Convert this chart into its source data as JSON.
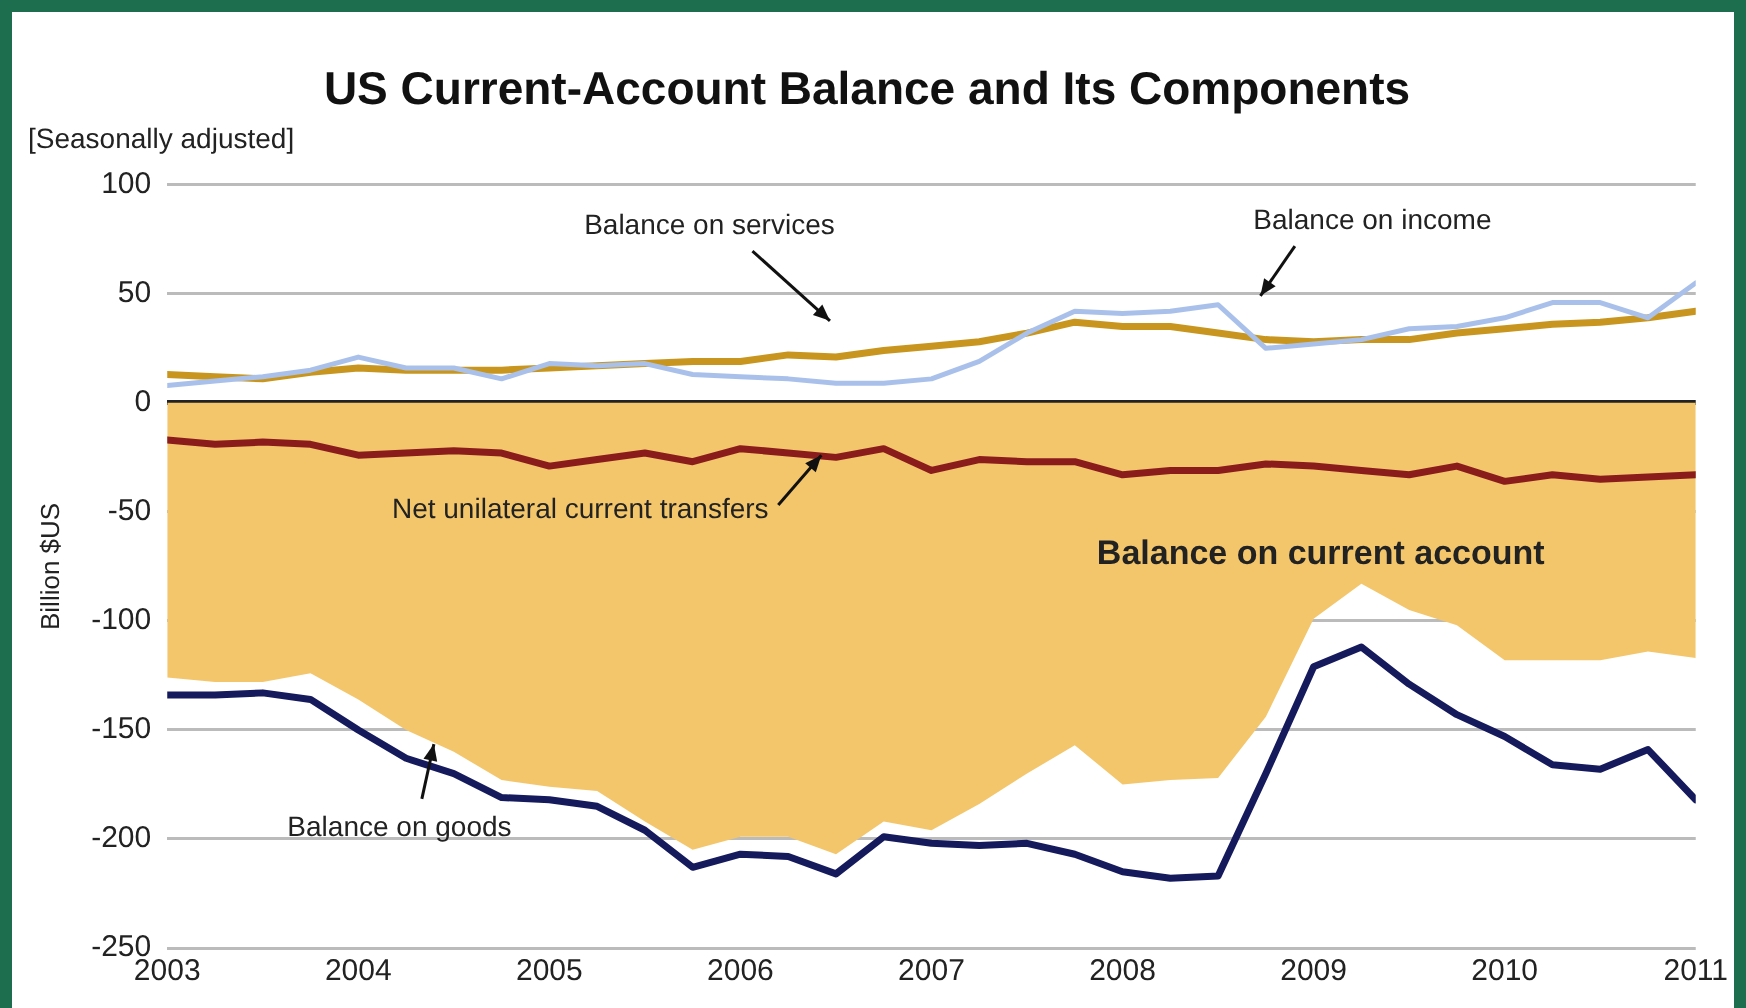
{
  "chart_data": {
    "type": "line",
    "title": "US Current-Account Balance and Its Components",
    "subtitle": "[Seasonally adjusted]",
    "ylabel": "Billion $US",
    "x": [
      2003,
      2003.25,
      2003.5,
      2003.75,
      2004,
      2004.25,
      2004.5,
      2004.75,
      2005,
      2005.25,
      2005.5,
      2005.75,
      2006,
      2006.25,
      2006.5,
      2006.75,
      2007,
      2007.25,
      2007.5,
      2007.75,
      2008,
      2008.25,
      2008.5,
      2008.75,
      2009,
      2009.25,
      2009.5,
      2009.75,
      2010,
      2010.25,
      2010.5,
      2010.75,
      2011
    ],
    "xlim": [
      2003,
      2011
    ],
    "xticks": [
      2003,
      2004,
      2005,
      2006,
      2007,
      2008,
      2009,
      2010,
      2011
    ],
    "ylim": [
      -250,
      100
    ],
    "yticks": [
      -250,
      -200,
      -150,
      -100,
      -50,
      0,
      50,
      100
    ],
    "grid": "y",
    "legend": false,
    "marker": "none",
    "line_style": "solid",
    "series": [
      {
        "name": "Balance on current account",
        "type": "area",
        "color": "#f3c66b",
        "values": [
          -126,
          -128,
          -128,
          -124,
          -136,
          -150,
          -160,
          -173,
          -176,
          -178,
          -192,
          -205,
          -199,
          -199,
          -207,
          -192,
          -196,
          -184,
          -170,
          -157,
          -175,
          -173,
          -172,
          -144,
          -99,
          -83,
          -95,
          -102,
          -118,
          -118,
          -118,
          -114,
          -117
        ]
      },
      {
        "name": "Balance on services",
        "color": "#c8961e",
        "values": [
          13,
          12,
          11,
          14,
          16,
          15,
          15,
          15,
          16,
          17,
          18,
          19,
          19,
          22,
          21,
          24,
          26,
          28,
          32,
          37,
          35,
          35,
          32,
          29,
          28,
          29,
          29,
          32,
          34,
          36,
          37,
          39,
          42
        ]
      },
      {
        "name": "Balance on income",
        "color": "#a9c1ea",
        "values": [
          8,
          10,
          12,
          15,
          21,
          16,
          16,
          11,
          18,
          17,
          18,
          13,
          12,
          11,
          9,
          9,
          11,
          19,
          32,
          42,
          41,
          42,
          45,
          25,
          27,
          29,
          34,
          35,
          39,
          46,
          46,
          39,
          55
        ]
      },
      {
        "name": "Net unilateral current transfers",
        "color": "#8b1c1c",
        "values": [
          -17,
          -19,
          -18,
          -19,
          -24,
          -23,
          -22,
          -23,
          -29,
          -26,
          -23,
          -27,
          -21,
          -23,
          -25,
          -21,
          -31,
          -26,
          -27,
          -27,
          -33,
          -31,
          -31,
          -28,
          -29,
          -31,
          -33,
          -29,
          -36,
          -33,
          -35,
          -34,
          -33
        ]
      },
      {
        "name": "Balance on goods",
        "color": "#141a5c",
        "values": [
          -134,
          -134,
          -133,
          -136,
          -150,
          -163,
          -170,
          -181,
          -182,
          -185,
          -196,
          -213,
          -207,
          -208,
          -216,
          -199,
          -202,
          -203,
          -202,
          -207,
          -215,
          -218,
          -217,
          -170,
          -121,
          -112,
          -129,
          -143,
          -153,
          -166,
          -168,
          -159,
          -182
        ]
      }
    ]
  }
}
